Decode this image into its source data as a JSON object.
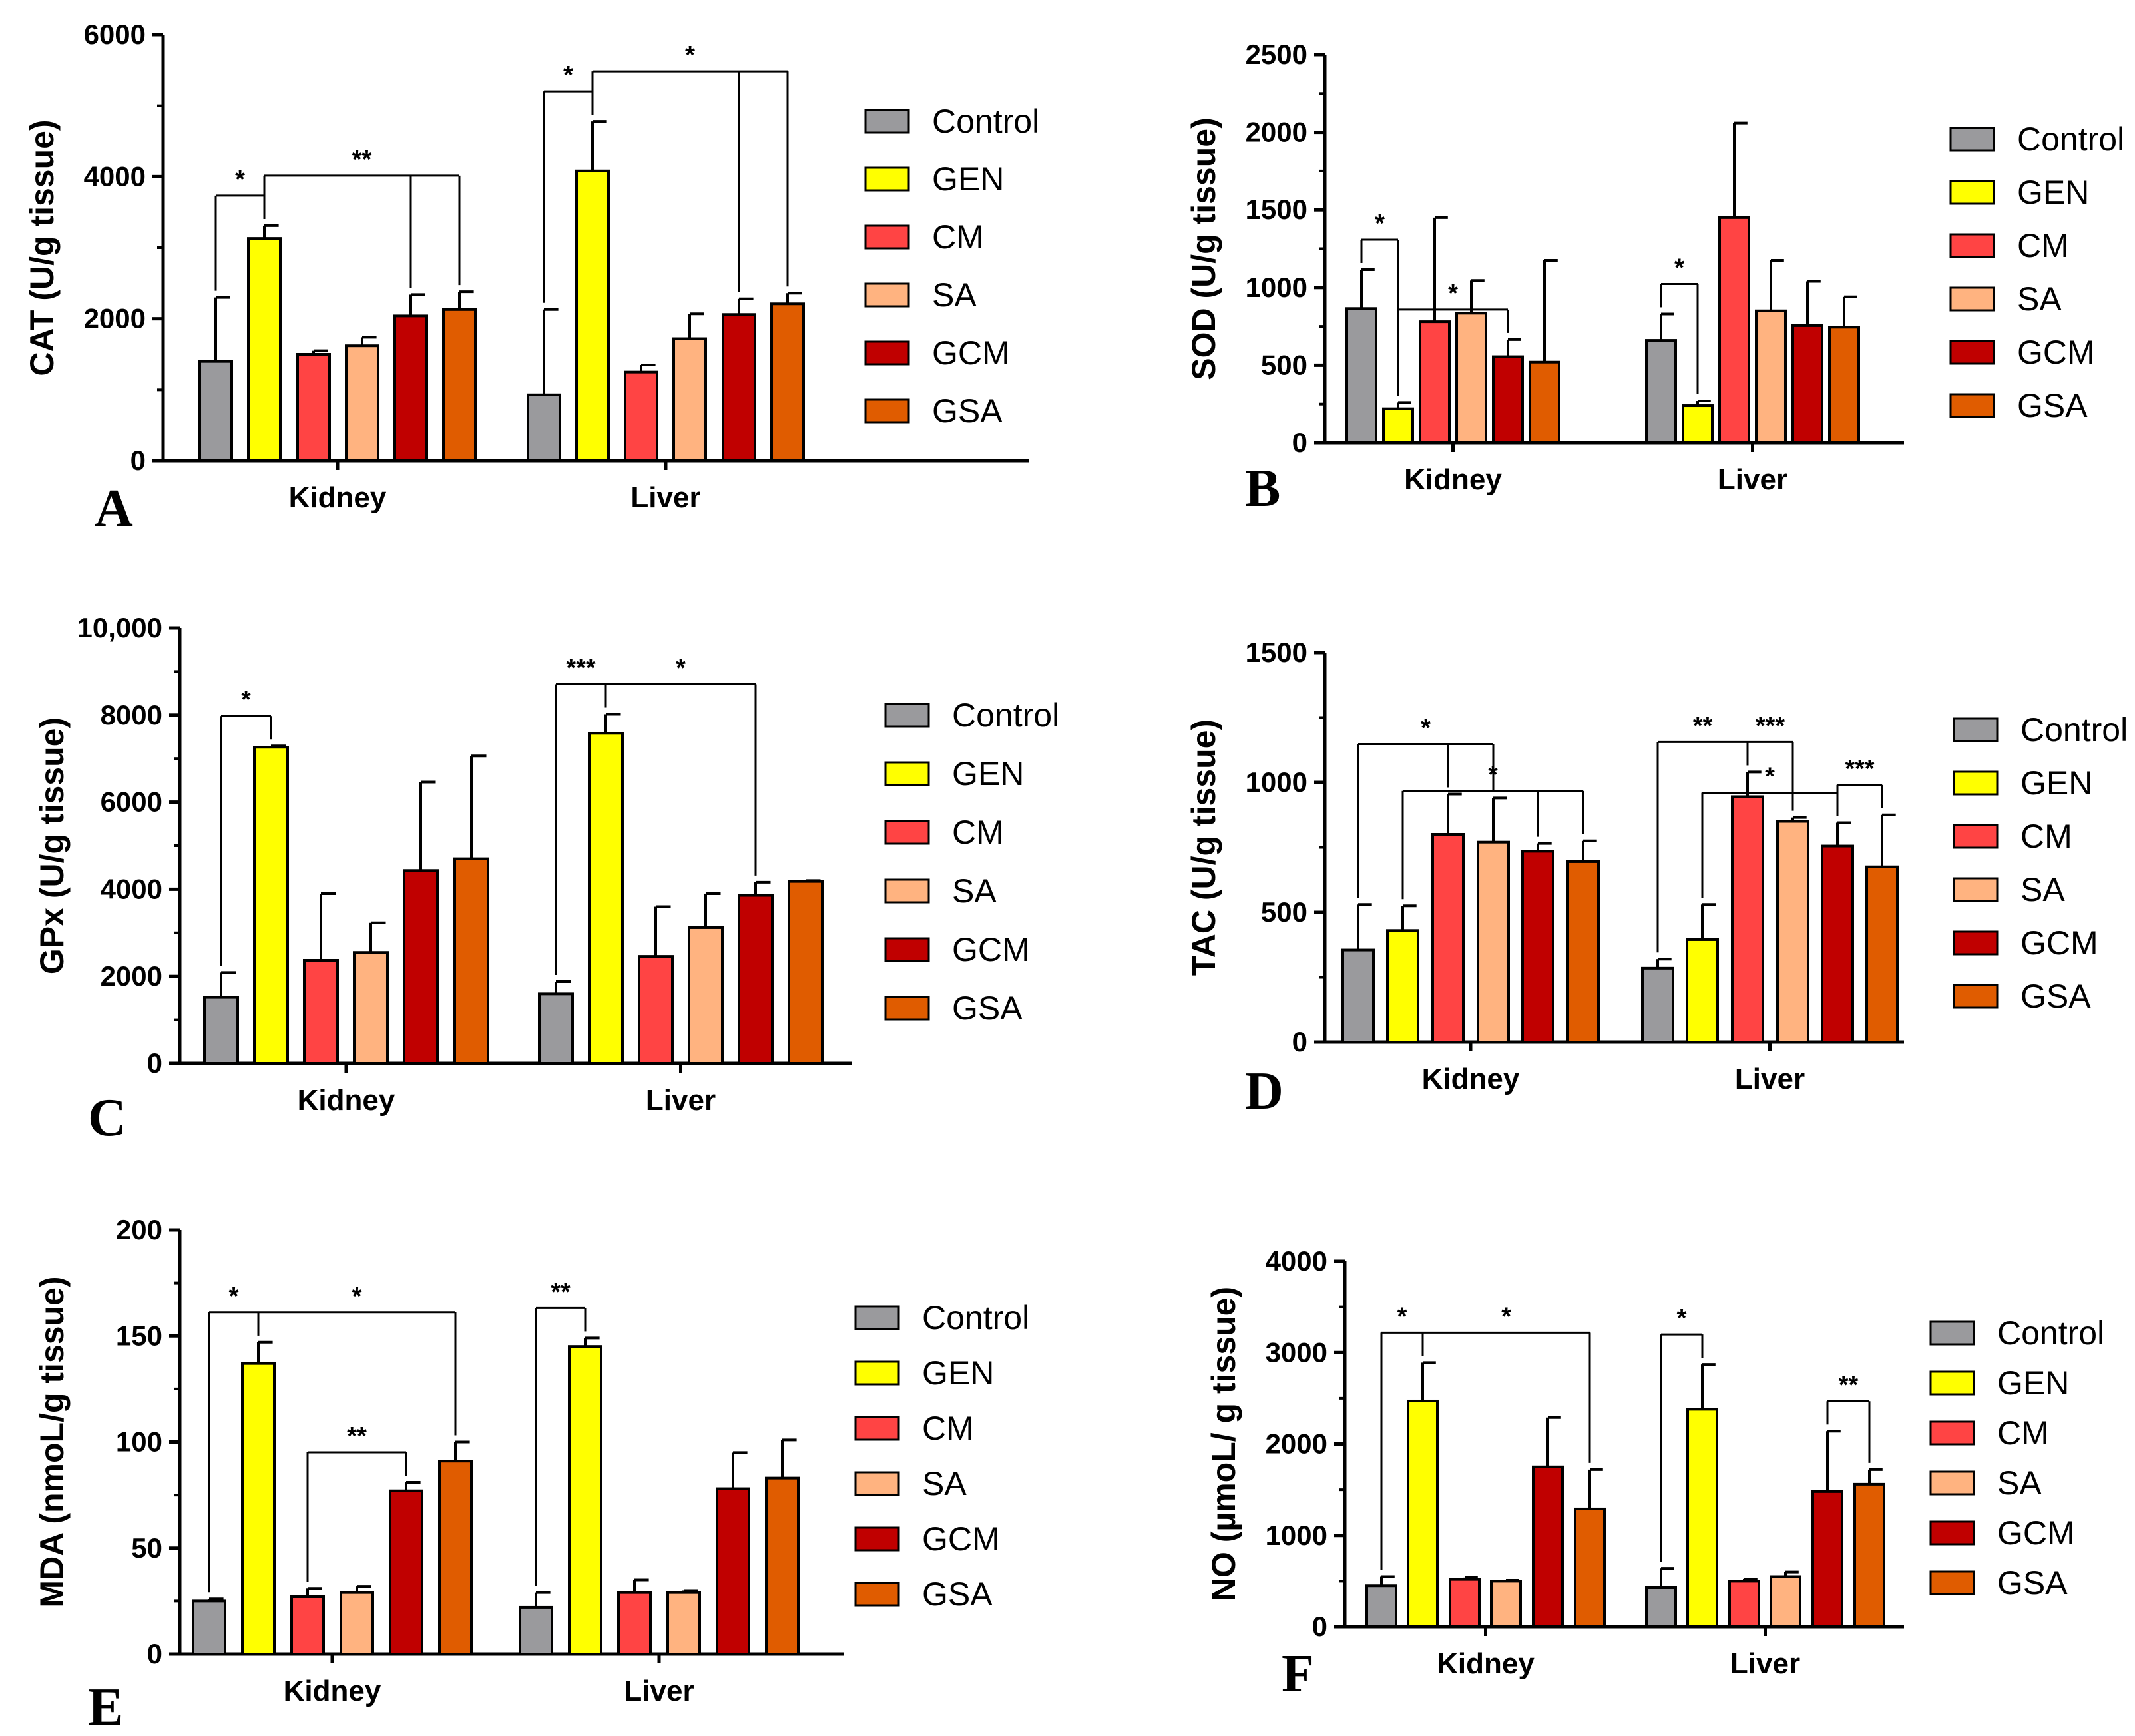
{
  "colors": {
    "Control": "#9a9a9d",
    "GEN": "#ffff00",
    "CM": "#ff4444",
    "SA": "#ffb380",
    "GCM": "#c00000",
    "GSA": "#e05c00"
  },
  "legend": [
    "Control",
    "GEN",
    "CM",
    "SA",
    "GCM",
    "GSA"
  ],
  "chart_data": [
    {
      "type": "bar",
      "panel": "A",
      "ylabel": "CAT (U/g tissue)",
      "ylim": [
        0,
        6000
      ],
      "yticks": [
        0,
        2000,
        4000,
        6000
      ],
      "ytick_labels": [
        "0",
        "2000",
        "4000",
        "6000"
      ],
      "categories": [
        "Kidney",
        "Liver"
      ],
      "series": [
        {
          "name": "Control",
          "values": [
            1400,
            930
          ],
          "errors": [
            900,
            1200
          ]
        },
        {
          "name": "GEN",
          "values": [
            3130,
            4080
          ],
          "errors": [
            180,
            700
          ]
        },
        {
          "name": "CM",
          "values": [
            1500,
            1250
          ],
          "errors": [
            50,
            100
          ]
        },
        {
          "name": "SA",
          "values": [
            1620,
            1720
          ],
          "errors": [
            120,
            350
          ]
        },
        {
          "name": "GCM",
          "values": [
            2040,
            2060
          ],
          "errors": [
            300,
            220
          ]
        },
        {
          "name": "GSA",
          "values": [
            2130,
            2210
          ],
          "errors": [
            250,
            150
          ]
        }
      ],
      "significance": [
        {
          "group": 0,
          "from": 0,
          "to": 1,
          "label": "*"
        },
        {
          "group": 0,
          "from": 1,
          "to": [
            4,
            5
          ],
          "label": "**"
        },
        {
          "group": 1,
          "from": 0,
          "to": 1,
          "label": "*"
        },
        {
          "group": 1,
          "from": 1,
          "to": [
            4,
            5
          ],
          "label": "*"
        }
      ]
    },
    {
      "type": "bar",
      "panel": "B",
      "ylabel": "SOD (U/g tissue)",
      "ylim": [
        0,
        2500
      ],
      "yticks": [
        0,
        500,
        1000,
        1500,
        2000,
        2500
      ],
      "ytick_labels": [
        "0",
        "500",
        "1000",
        "1500",
        "2000",
        "2500"
      ],
      "categories": [
        "Kidney",
        "Liver"
      ],
      "series": [
        {
          "name": "Control",
          "values": [
            865,
            660
          ],
          "errors": [
            250,
            170
          ]
        },
        {
          "name": "GEN",
          "values": [
            220,
            240
          ],
          "errors": [
            40,
            30
          ]
        },
        {
          "name": "CM",
          "values": [
            780,
            1450
          ],
          "errors": [
            670,
            610
          ]
        },
        {
          "name": "SA",
          "values": [
            835,
            850
          ],
          "errors": [
            210,
            325
          ]
        },
        {
          "name": "GCM",
          "values": [
            555,
            755
          ],
          "errors": [
            110,
            285
          ]
        },
        {
          "name": "GSA",
          "values": [
            520,
            745
          ],
          "errors": [
            655,
            195
          ]
        }
      ],
      "significance": [
        {
          "group": 0,
          "from": 0,
          "to": 1,
          "label": "*"
        },
        {
          "group": 0,
          "from": 1,
          "to": [
            4
          ],
          "label": "*"
        },
        {
          "group": 1,
          "from": 0,
          "to": 1,
          "label": "*"
        }
      ]
    },
    {
      "type": "bar",
      "panel": "C",
      "ylabel": "GPx (U/g tissue)",
      "ylim": [
        0,
        10000
      ],
      "yticks": [
        0,
        2000,
        4000,
        6000,
        8000,
        10000
      ],
      "ytick_labels": [
        "0",
        "2000",
        "4000",
        "6000",
        "8000",
        "10,000"
      ],
      "categories": [
        "Kidney",
        "Liver"
      ],
      "series": [
        {
          "name": "Control",
          "values": [
            1520,
            1600
          ],
          "errors": [
            570,
            280
          ]
        },
        {
          "name": "GEN",
          "values": [
            7260,
            7580
          ],
          "errors": [
            30,
            440
          ]
        },
        {
          "name": "CM",
          "values": [
            2370,
            2460
          ],
          "errors": [
            1530,
            1140
          ]
        },
        {
          "name": "SA",
          "values": [
            2550,
            3120
          ],
          "errors": [
            680,
            780
          ]
        },
        {
          "name": "GCM",
          "values": [
            4430,
            3860
          ],
          "errors": [
            2030,
            300
          ]
        },
        {
          "name": "GSA",
          "values": [
            4700,
            4180
          ],
          "errors": [
            2360,
            20
          ]
        }
      ],
      "significance": [
        {
          "group": 0,
          "from": 0,
          "to": 1,
          "label": "*"
        },
        {
          "group": 1,
          "from": 0,
          "to": 1,
          "label": "***"
        },
        {
          "group": 1,
          "from": 1,
          "to": [
            4
          ],
          "label": "*"
        }
      ]
    },
    {
      "type": "bar",
      "panel": "D",
      "ylabel": "TAC (U/g tissue)",
      "ylim": [
        0,
        1500
      ],
      "yticks": [
        0,
        500,
        1000,
        1500
      ],
      "ytick_labels": [
        "0",
        "500",
        "1000",
        "1500"
      ],
      "categories": [
        "Kidney",
        "Liver"
      ],
      "series": [
        {
          "name": "Control",
          "values": [
            355,
            285
          ],
          "errors": [
            175,
            35
          ]
        },
        {
          "name": "GEN",
          "values": [
            430,
            395
          ],
          "errors": [
            95,
            135
          ]
        },
        {
          "name": "CM",
          "values": [
            800,
            945
          ],
          "errors": [
            155,
            95
          ]
        },
        {
          "name": "SA",
          "values": [
            770,
            850
          ],
          "errors": [
            170,
            15
          ]
        },
        {
          "name": "GCM",
          "values": [
            735,
            755
          ],
          "errors": [
            30,
            90
          ]
        },
        {
          "name": "GSA",
          "values": [
            695,
            675
          ],
          "errors": [
            80,
            200
          ]
        }
      ],
      "significance": [
        {
          "group": 0,
          "from": 0,
          "to": [
            2,
            3
          ],
          "label": "*"
        },
        {
          "group": 0,
          "from": 1,
          "to": [
            4,
            5
          ],
          "label": "*"
        },
        {
          "group": 1,
          "from": 0,
          "to": [
            2
          ],
          "label": "**"
        },
        {
          "group": 1,
          "from": [
            2
          ],
          "to": [
            3
          ],
          "label": "***"
        },
        {
          "group": 1,
          "from": 1,
          "to": [
            4
          ],
          "label": "*"
        },
        {
          "group": 1,
          "from": [
            4
          ],
          "to": [
            5
          ],
          "label": "***"
        }
      ]
    },
    {
      "type": "bar",
      "panel": "E",
      "ylabel": "MDA (nmoL/g tissue)",
      "ylim": [
        0,
        200
      ],
      "yticks": [
        0,
        50,
        100,
        150,
        200
      ],
      "ytick_labels": [
        "0",
        "50",
        "100",
        "150",
        "200"
      ],
      "categories": [
        "Kidney",
        "Liver"
      ],
      "series": [
        {
          "name": "Control",
          "values": [
            25,
            22
          ],
          "errors": [
            1,
            7
          ]
        },
        {
          "name": "GEN",
          "values": [
            137,
            145
          ],
          "errors": [
            10,
            4
          ]
        },
        {
          "name": "CM",
          "values": [
            27,
            29
          ],
          "errors": [
            4,
            6
          ]
        },
        {
          "name": "SA",
          "values": [
            29,
            29
          ],
          "errors": [
            3,
            1
          ]
        },
        {
          "name": "GCM",
          "values": [
            77,
            78
          ],
          "errors": [
            4,
            17
          ]
        },
        {
          "name": "GSA",
          "values": [
            91,
            83
          ],
          "errors": [
            9,
            18
          ]
        }
      ],
      "significance": [
        {
          "group": 0,
          "from": 0,
          "to": 1,
          "label": "*"
        },
        {
          "group": 0,
          "from": 1,
          "to": [
            5
          ],
          "label": "*"
        },
        {
          "group": 0,
          "from": 2,
          "to": [
            4
          ],
          "label": "**"
        },
        {
          "group": 1,
          "from": 0,
          "to": 1,
          "label": "**"
        }
      ]
    },
    {
      "type": "bar",
      "panel": "F",
      "ylabel": "NO (µmoL/ g tissue)",
      "ylim": [
        0,
        4000
      ],
      "yticks": [
        0,
        1000,
        2000,
        3000,
        4000
      ],
      "ytick_labels": [
        "0",
        "1000",
        "2000",
        "3000",
        "4000"
      ],
      "categories": [
        "Kidney",
        "Liver"
      ],
      "series": [
        {
          "name": "Control",
          "values": [
            450,
            430
          ],
          "errors": [
            100,
            210
          ]
        },
        {
          "name": "GEN",
          "values": [
            2470,
            2380
          ],
          "errors": [
            420,
            490
          ]
        },
        {
          "name": "CM",
          "values": [
            520,
            500
          ],
          "errors": [
            20,
            25
          ]
        },
        {
          "name": "SA",
          "values": [
            500,
            550
          ],
          "errors": [
            10,
            50
          ]
        },
        {
          "name": "GCM",
          "values": [
            1750,
            1480
          ],
          "errors": [
            540,
            660
          ]
        },
        {
          "name": "GSA",
          "values": [
            1290,
            1560
          ],
          "errors": [
            430,
            160
          ]
        }
      ],
      "significance": [
        {
          "group": 0,
          "from": 0,
          "to": 1,
          "label": "*"
        },
        {
          "group": 0,
          "from": 1,
          "to": [
            5
          ],
          "label": "*"
        },
        {
          "group": 1,
          "from": 0,
          "to": 1,
          "label": "*"
        },
        {
          "group": 1,
          "from": 4,
          "to": [
            5
          ],
          "label": "**"
        }
      ]
    }
  ]
}
